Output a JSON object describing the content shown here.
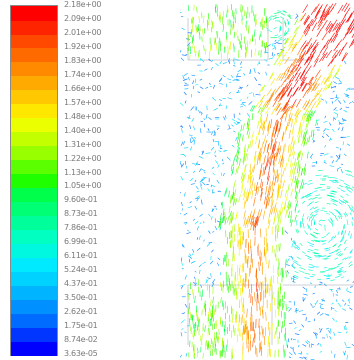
{
  "legend": {
    "colors": [
      "#0000ff",
      "#0036ff",
      "#006cff",
      "#0090ff",
      "#00b4ff",
      "#00d2ff",
      "#00eaff",
      "#00f8e0",
      "#00ffc0",
      "#00ff9a",
      "#00ff74",
      "#00ff4a",
      "#20ff00",
      "#5cff00",
      "#98ff00",
      "#c4ff00",
      "#ecff00",
      "#ffe800",
      "#ffc800",
      "#ffaa00",
      "#ff8a00",
      "#ff6a00",
      "#ff4800",
      "#ff2400",
      "#ff0000"
    ],
    "labels": [
      "2.18e+00",
      "2.09e+00",
      "2.01e+00",
      "1.92e+00",
      "1.83e+00",
      "1.74e+00",
      "1.66e+00",
      "1.57e+00",
      "1.48e+00",
      "1.40e+00",
      "1.31e+00",
      "1.22e+00",
      "1.13e+00",
      "1.05e+00",
      "9.60e-01",
      "8.73e-01",
      "7.86e-01",
      "6.99e-01",
      "6.11e-01",
      "5.24e-01",
      "4.37e-01",
      "3.50e-01",
      "2.62e-01",
      "1.75e-01",
      "8.74e-02",
      "3.63e-05"
    ]
  },
  "plot": {
    "type": "velocity-vector-field"
  }
}
